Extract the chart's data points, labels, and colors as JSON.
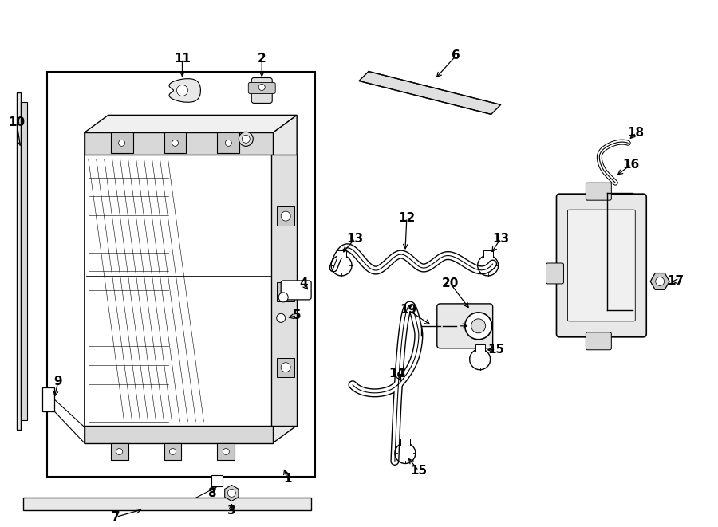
{
  "bg_color": "#ffffff",
  "line_color": "#000000",
  "fig_width": 9.0,
  "fig_height": 6.61,
  "dpi": 100,
  "xlim": [
    0,
    9.0
  ],
  "ylim": [
    0,
    6.61
  ]
}
